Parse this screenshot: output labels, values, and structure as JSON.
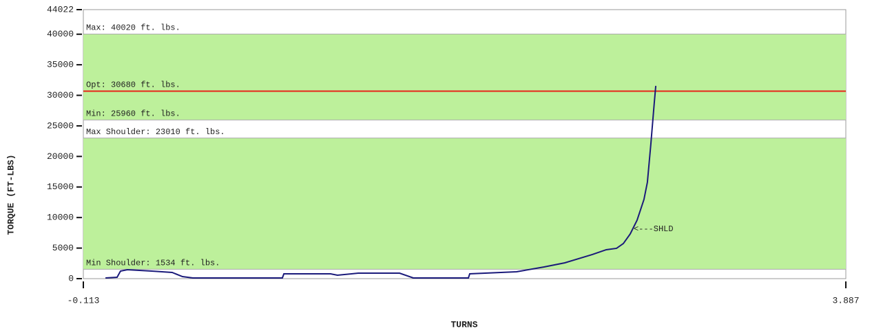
{
  "chart_data": {
    "type": "line",
    "xlabel": "TURNS",
    "ylabel": "TORQUE (FT-LBS)",
    "xlim": [
      -0.113,
      3.887
    ],
    "xticks": [
      -0.113,
      3.887
    ],
    "ylim": [
      0,
      44022
    ],
    "yticks": [
      0,
      5000,
      10000,
      15000,
      20000,
      25000,
      30000,
      35000,
      40000,
      44022
    ],
    "band_color": "#bdf09b",
    "bands": [
      {
        "from": 1534,
        "to": 23010
      },
      {
        "from": 25960,
        "to": 40020
      }
    ],
    "limits": [
      {
        "label": "Max: 40020 ft.  lbs.",
        "value": 40020
      },
      {
        "label": "Opt: 30680 ft.  lbs.",
        "value": 30680,
        "color": "#e8231a"
      },
      {
        "label": "Min: 25960 ft.  lbs.",
        "value": 25960
      },
      {
        "label": "Max Shoulder: 23010 ft.  lbs.",
        "value": 23010
      },
      {
        "label": "Min Shoulder: 1534 ft.  lbs.",
        "value": 1534
      }
    ],
    "annotation": {
      "text": "<---SHLD",
      "x": 2.774,
      "y": 8113
    },
    "x": [
      0.003,
      0.064,
      0.082,
      0.118,
      0.245,
      0.353,
      0.407,
      0.462,
      0.931,
      0.939,
      1.184,
      1.22,
      1.329,
      1.546,
      1.618,
      1.907,
      1.914,
      2.16,
      2.304,
      2.413,
      2.557,
      2.63,
      2.684,
      2.72,
      2.756,
      2.792,
      2.828,
      2.846,
      2.864,
      2.882,
      2.89
    ],
    "series": [
      {
        "color": "#1a1a7a",
        "values": [
          113,
          225,
          1239,
          1465,
          1239,
          1014,
          338,
          113,
          113,
          789,
          789,
          563,
          901,
          901,
          113,
          113,
          789,
          1127,
          1915,
          2592,
          3944,
          4732,
          4958,
          5746,
          7324,
          9577,
          12958,
          15775,
          21972,
          28732,
          31549
        ]
      }
    ]
  }
}
